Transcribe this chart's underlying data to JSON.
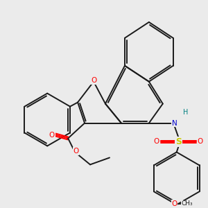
{
  "bg_color": "#ebebeb",
  "bond_color": "#1a1a1a",
  "o_color": "#ff0000",
  "n_color": "#0000cc",
  "h_color": "#008080",
  "s_color": "#cccc00",
  "lw": 1.4,
  "fig_w": 3.0,
  "fig_h": 3.0,
  "dpi": 100,
  "xlim": [
    0,
    10
  ],
  "ylim": [
    0,
    10
  ]
}
